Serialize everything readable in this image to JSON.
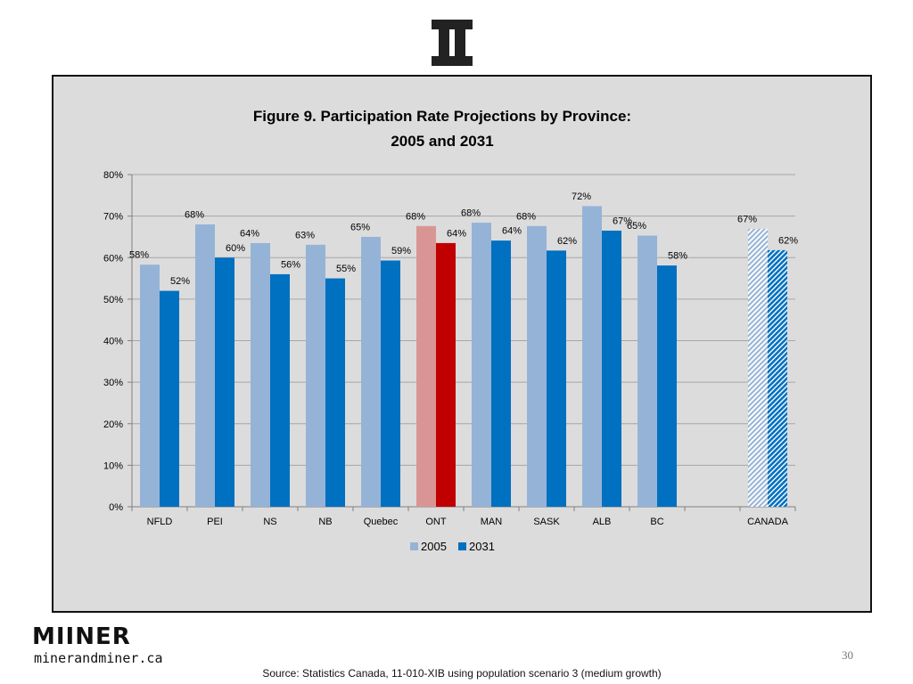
{
  "brand": {
    "name": "MIINER",
    "url": "minerandminer.ca"
  },
  "page_number": "30",
  "source_note": "Source: Statistics Canada, 11-010-XIB using population scenario 3 (medium growth)",
  "colors": {
    "s2005": "#95b3d7",
    "s2031": "#0070c0",
    "ont2005": "#d99594",
    "ont2031": "#c00000",
    "panel": "#dcdcdc",
    "grid": "#a6a6a6"
  },
  "chart_data": {
    "type": "bar",
    "title": [
      "Figure 9. Participation Rate Projections by Province:",
      "2005 and 2031"
    ],
    "categories": [
      "NFLD",
      "PEI",
      "NS",
      "NB",
      "Quebec",
      "ONT",
      "MAN",
      "SASK",
      "ALB",
      "BC",
      "CANADA"
    ],
    "series": [
      {
        "name": "2005",
        "values": [
          58.3,
          68,
          63.5,
          63.1,
          65,
          67.6,
          68.4,
          67.6,
          72.4,
          65.3,
          66.9
        ],
        "labels": [
          "58%",
          "68%",
          "64%",
          "63%",
          "65%",
          "68%",
          "68%",
          "68%",
          "72%",
          "65%",
          "67%"
        ]
      },
      {
        "name": "2031",
        "values": [
          52,
          60,
          56,
          55,
          59.3,
          63.5,
          64.1,
          61.7,
          66.5,
          58.1,
          61.8
        ],
        "labels": [
          "52%",
          "60%",
          "56%",
          "55%",
          "59%",
          "64%",
          "64%",
          "62%",
          "67%",
          "58%",
          "62%"
        ]
      }
    ],
    "highlight_category": "ONT",
    "hatched_category": "CANADA",
    "ylim": [
      0,
      80
    ],
    "yticks": [
      "0%",
      "10%",
      "20%",
      "30%",
      "40%",
      "50%",
      "60%",
      "70%",
      "80%"
    ],
    "grid": true,
    "legend": [
      "2005",
      "2031"
    ],
    "legend_position": "bottom",
    "xlabel": "",
    "ylabel": ""
  }
}
